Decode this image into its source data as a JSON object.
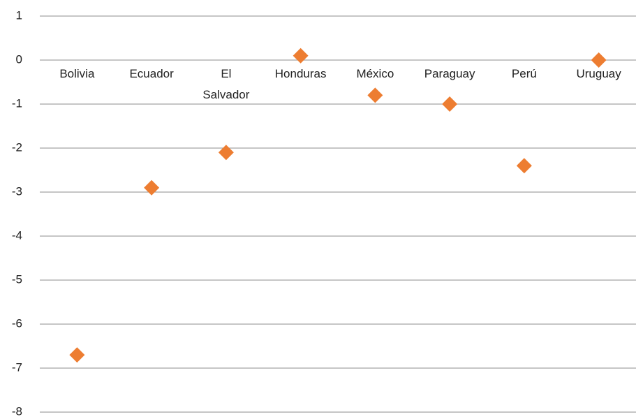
{
  "chart_data": {
    "type": "scatter",
    "categories": [
      "Bolivia",
      "Ecuador",
      "El Salvador",
      "Honduras",
      "México",
      "Paraguay",
      "Perú",
      "Uruguay"
    ],
    "values": [
      -6.7,
      -2.9,
      -2.1,
      0.1,
      -0.8,
      -1.0,
      -2.4,
      0.0
    ],
    "color": "#ed7d31",
    "ylim": [
      -8,
      1
    ],
    "yticks": [
      1,
      0,
      -1,
      -2,
      -3,
      -4,
      -5,
      -6,
      -7,
      -8
    ],
    "grid": true
  }
}
